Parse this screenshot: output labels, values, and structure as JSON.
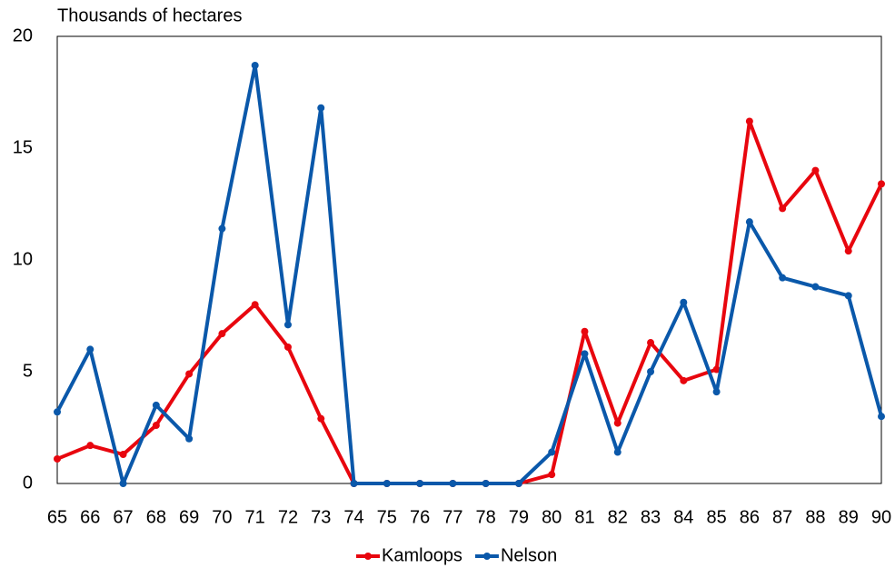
{
  "chart_data": {
    "type": "line",
    "y_label": "Thousands of hectares",
    "categories": [
      "65",
      "66",
      "67",
      "68",
      "69",
      "70",
      "71",
      "72",
      "73",
      "74",
      "75",
      "76",
      "77",
      "78",
      "79",
      "80",
      "81",
      "82",
      "83",
      "84",
      "85",
      "86",
      "87",
      "88",
      "89",
      "90"
    ],
    "series": [
      {
        "name": "Kamloops",
        "color": "#e8060e",
        "values": [
          1.1,
          1.7,
          1.3,
          2.6,
          4.9,
          6.7,
          8.0,
          6.1,
          2.9,
          0,
          0,
          0,
          0,
          0,
          0,
          0.4,
          6.8,
          2.7,
          6.3,
          4.6,
          5.1,
          16.2,
          12.3,
          14.0,
          10.4,
          13.4
        ]
      },
      {
        "name": "Nelson",
        "color": "#0a58aa",
        "values": [
          3.2,
          6.0,
          0,
          3.5,
          2.0,
          11.4,
          18.7,
          7.1,
          16.8,
          0,
          0,
          0,
          0,
          0,
          0,
          1.4,
          5.8,
          1.4,
          5.0,
          8.1,
          4.1,
          11.7,
          9.2,
          8.8,
          8.4,
          3.0
        ]
      }
    ],
    "ylim": [
      0,
      20
    ],
    "yticks": [
      0,
      5,
      10,
      15,
      20
    ],
    "grid": false,
    "legend": "bottom"
  }
}
